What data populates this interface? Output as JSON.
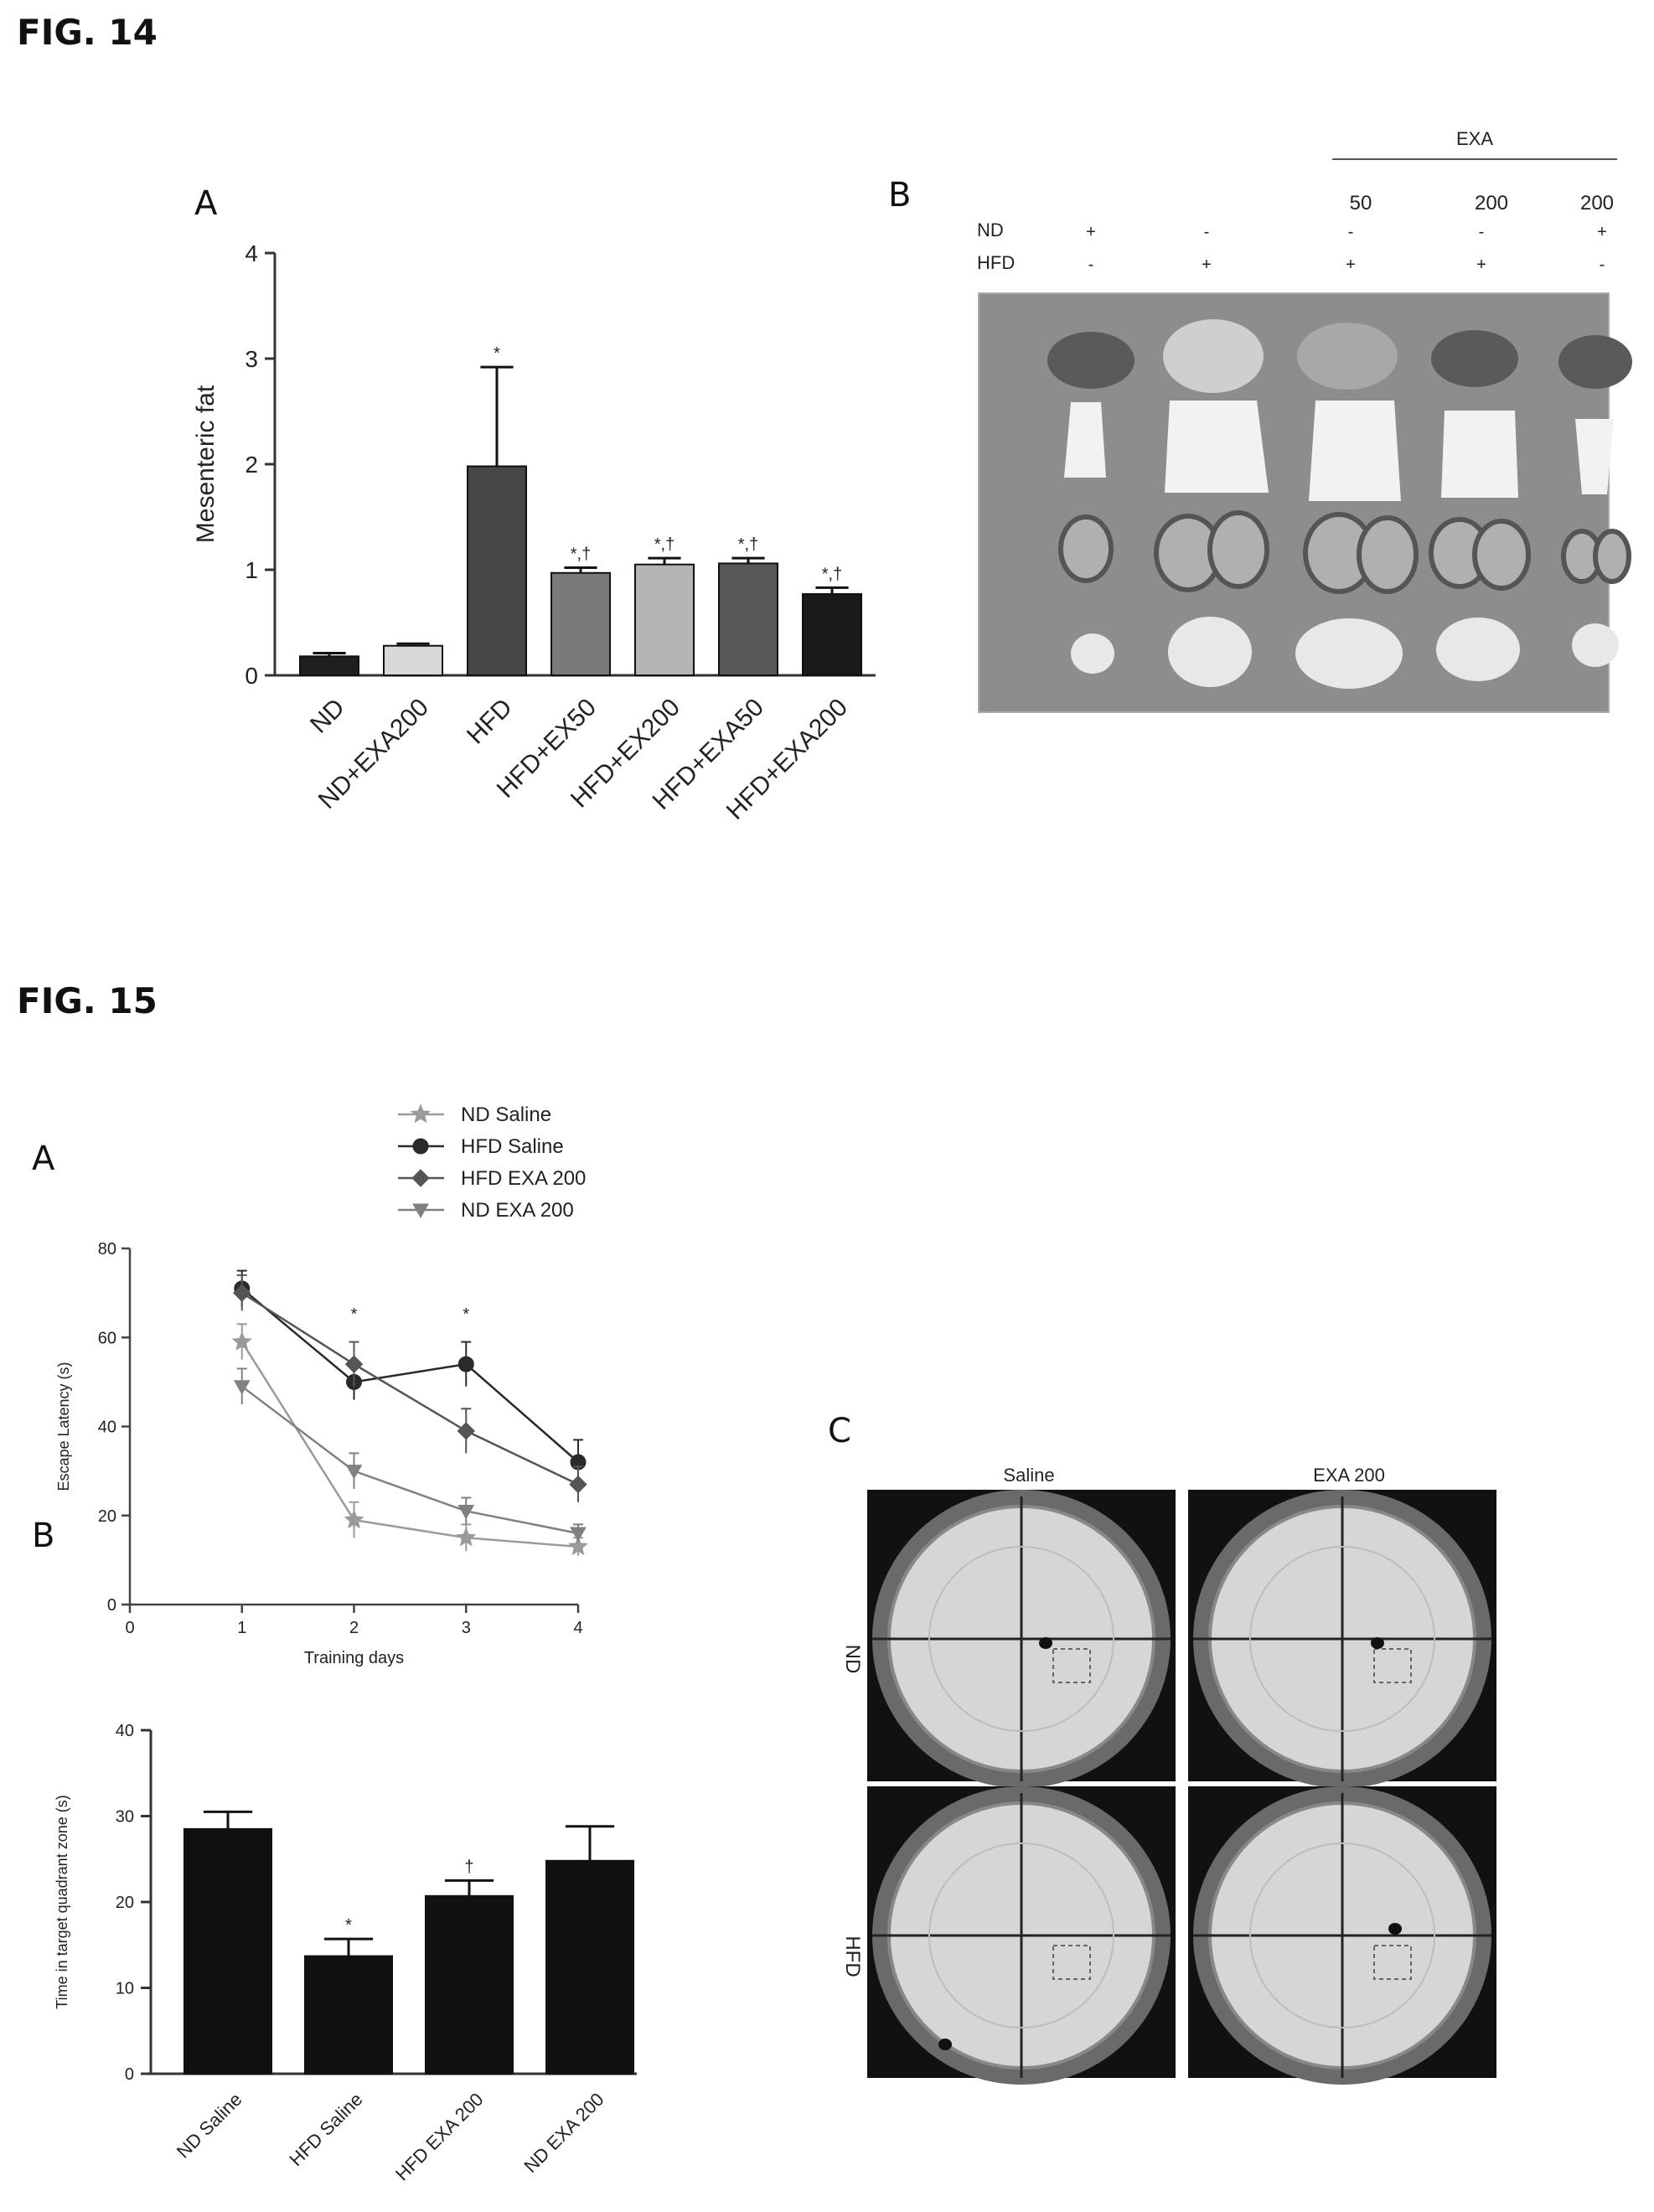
{
  "figures": {
    "fig14": {
      "title": "FIG. 14",
      "panel_a_letter": "A",
      "panel_b_letter": "B",
      "panel_b": {
        "header_group": "EXA",
        "doses": [
          "50",
          "200",
          "200"
        ],
        "row_labels": [
          "ND",
          "HFD"
        ],
        "nd_marks": [
          "+",
          "-",
          "-",
          "-",
          "+"
        ],
        "hfd_marks": [
          "-",
          "+",
          "+",
          "+",
          "-"
        ]
      }
    },
    "fig15": {
      "title": "FIG. 15",
      "panel_a_letter": "A",
      "panel_b_letter": "B",
      "panel_c_letter": "C",
      "panel_c": {
        "col_labels": [
          "Saline",
          "EXA 200"
        ],
        "row_labels": [
          "ND",
          "HFD"
        ]
      }
    }
  },
  "chart_data": [
    {
      "id": "fig14A",
      "type": "bar",
      "ylabel": "Mesenteric fat",
      "ylim": [
        0,
        4
      ],
      "yticks": [
        "0",
        "1",
        "2",
        "3",
        "4"
      ],
      "categories": [
        "ND",
        "ND+EXA200",
        "HFD",
        "HFD+EX50",
        "HFD+EX200",
        "HFD+EXA50",
        "HFD+EXA200"
      ],
      "values": [
        0.18,
        0.28,
        1.98,
        0.97,
        1.05,
        1.06,
        0.77
      ],
      "errors": [
        0.03,
        0.02,
        0.94,
        0.05,
        0.06,
        0.05,
        0.06
      ],
      "annotations": [
        "",
        "",
        "*",
        "*,†",
        "*,†",
        "*,†",
        "*,†"
      ],
      "colors": [
        "#1f1f1f",
        "#d8d8d8",
        "#474747",
        "#7a7a7a",
        "#b5b5b5",
        "#585858",
        "#1a1a1a"
      ]
    },
    {
      "id": "fig15A",
      "type": "line",
      "xlabel": "Training days",
      "ylabel": "Escape Latency (s)",
      "xlim": [
        0,
        4
      ],
      "ylim": [
        0,
        80
      ],
      "xticks": [
        "0",
        "1",
        "2",
        "3",
        "4"
      ],
      "yticks": [
        "0",
        "20",
        "40",
        "60",
        "80"
      ],
      "x": [
        1,
        2,
        3,
        4
      ],
      "series": [
        {
          "name": "ND Saline",
          "values": [
            59,
            19,
            15,
            13
          ],
          "errors": [
            4,
            4,
            3,
            2
          ],
          "marker": "star",
          "color": "#9a9a9a"
        },
        {
          "name": "HFD Saline",
          "values": [
            71,
            50,
            54,
            32
          ],
          "errors": [
            4,
            4,
            5,
            5
          ],
          "marker": "circle",
          "color": "#2a2a2a"
        },
        {
          "name": "HFD EXA 200",
          "values": [
            70,
            54,
            39,
            27
          ],
          "errors": [
            4,
            5,
            5,
            4
          ],
          "marker": "diamond",
          "color": "#555555"
        },
        {
          "name": "ND EXA 200",
          "values": [
            49,
            30,
            21,
            16
          ],
          "errors": [
            4,
            4,
            3,
            2
          ],
          "marker": "triangle",
          "color": "#808080"
        }
      ],
      "annotations": [
        {
          "x": 2,
          "y": 64,
          "text": "*"
        },
        {
          "x": 3,
          "y": 64,
          "text": "*"
        }
      ]
    },
    {
      "id": "fig15B",
      "type": "bar",
      "ylabel": "Time in target quadrant zone (s)",
      "ylim": [
        0,
        40
      ],
      "yticks": [
        "0",
        "10",
        "20",
        "30",
        "40"
      ],
      "categories": [
        "ND Saline",
        "HFD Saline",
        "HFD EXA 200",
        "ND EXA 200"
      ],
      "values": [
        28.5,
        13.7,
        20.7,
        24.8
      ],
      "errors": [
        2.0,
        2.0,
        1.8,
        4.0
      ],
      "annotations": [
        "",
        "*",
        "†",
        ""
      ],
      "colors": [
        "#111111",
        "#111111",
        "#111111",
        "#111111"
      ]
    }
  ]
}
